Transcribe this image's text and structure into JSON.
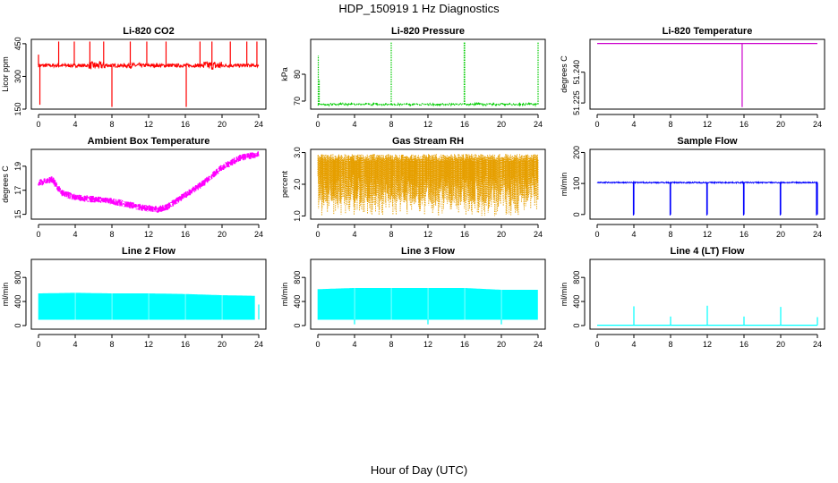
{
  "header": {
    "title": "HDP_150919  1 Hz Diagnostics"
  },
  "footer": {
    "xlabel": "Hour of Day (UTC)"
  },
  "chart_data": [
    {
      "type": "line",
      "title": "Li-820 CO2",
      "ylabel": "Licor ppm",
      "xlim": [
        0,
        24
      ],
      "ylim": [
        150,
        470
      ],
      "xticks": [
        0,
        4,
        8,
        12,
        16,
        20,
        24
      ],
      "yticks": [
        150,
        300,
        450
      ],
      "ytick_labels": [
        "150",
        "300",
        "450"
      ],
      "color": "#ff0000",
      "style": "noisy",
      "base": [
        [
          0,
          350
        ],
        [
          24,
          350
        ]
      ],
      "noise": 8,
      "spikes": [
        [
          0,
          400
        ],
        [
          0.15,
          170
        ],
        [
          2.2,
          460
        ],
        [
          3.9,
          460
        ],
        [
          5.6,
          460
        ],
        [
          7.1,
          460
        ],
        [
          8,
          160
        ],
        [
          10,
          460
        ],
        [
          11.8,
          460
        ],
        [
          13.9,
          460
        ],
        [
          16.1,
          160
        ],
        [
          17.6,
          460
        ],
        [
          18.9,
          460
        ],
        [
          20.9,
          460
        ],
        [
          22.7,
          460
        ],
        [
          23.8,
          460
        ]
      ],
      "extra_noise": [
        [
          5.5,
          7.5,
          18
        ],
        [
          9.5,
          11,
          12
        ],
        [
          18,
          20,
          20
        ]
      ]
    },
    {
      "type": "line",
      "title": "Li-820 Pressure",
      "ylabel": "kPa",
      "xlim": [
        0,
        24
      ],
      "ylim": [
        67,
        93
      ],
      "xticks": [
        0,
        4,
        8,
        12,
        16,
        20,
        24
      ],
      "yticks": [
        70,
        80
      ],
      "ytick_labels": [
        "70",
        "80"
      ],
      "color": "#00cc00",
      "style": "dotted",
      "base": [
        [
          0,
          68.8
        ],
        [
          24,
          68.8
        ]
      ],
      "noise": 0.3,
      "spikes": [
        [
          0.05,
          87
        ],
        [
          0.15,
          78
        ],
        [
          8,
          92
        ],
        [
          16,
          92
        ],
        [
          15.95,
          92
        ],
        [
          24,
          92
        ]
      ],
      "extra_noise": []
    },
    {
      "type": "line",
      "title": "Li-820 Temperature",
      "ylabel": "degrees C",
      "xlim": [
        0,
        24
      ],
      "ylim": [
        51.222,
        51.256
      ],
      "xticks": [
        0,
        4,
        8,
        12,
        16,
        20,
        24
      ],
      "yticks": [
        51.225,
        51.24
      ],
      "ytick_labels": [
        "51.225",
        "51.240"
      ],
      "color": "#cc00cc",
      "style": "line",
      "base": [
        [
          0,
          51.254
        ],
        [
          24,
          51.254
        ]
      ],
      "noise": 0,
      "spikes": [
        [
          15.8,
          51.223
        ]
      ],
      "extra_noise": []
    },
    {
      "type": "line",
      "title": "Ambient Box Temperature",
      "ylabel": "degrees C",
      "xlim": [
        0,
        24
      ],
      "ylim": [
        14.6,
        20.4
      ],
      "xticks": [
        0,
        4,
        8,
        12,
        16,
        20,
        24
      ],
      "yticks": [
        15,
        17,
        19
      ],
      "ytick_labels": [
        "15",
        "17",
        "19"
      ],
      "color": "#ff00ff",
      "style": "band",
      "base": [
        [
          0,
          17.6
        ],
        [
          1.5,
          17.9
        ],
        [
          2.5,
          16.8
        ],
        [
          4,
          16.4
        ],
        [
          8,
          16.1
        ],
        [
          11,
          15.6
        ],
        [
          13,
          15.4
        ],
        [
          14,
          15.6
        ],
        [
          16,
          16.6
        ],
        [
          18,
          17.6
        ],
        [
          20,
          18.9
        ],
        [
          22,
          19.7
        ],
        [
          24,
          20
        ]
      ],
      "noise": 0.28,
      "spikes": [],
      "extra_noise": []
    },
    {
      "type": "line",
      "title": "Gas Stream RH",
      "ylabel": "percent",
      "xlim": [
        0,
        24
      ],
      "ylim": [
        0.9,
        3.1
      ],
      "xticks": [
        0,
        4,
        8,
        12,
        16,
        20,
        24
      ],
      "yticks": [
        1.0,
        2.0,
        3.0
      ],
      "ytick_labels": [
        "1.0",
        "2.0",
        "3.0"
      ],
      "color": "#e69f00",
      "style": "rh",
      "base": [
        [
          0,
          2.6
        ],
        [
          24,
          2.6
        ]
      ],
      "noise": 0.2,
      "spikes": [],
      "extra_noise": []
    },
    {
      "type": "line",
      "title": "Sample Flow",
      "ylabel": "ml/min",
      "xlim": [
        0,
        24
      ],
      "ylim": [
        -15,
        210
      ],
      "xticks": [
        0,
        4,
        8,
        12,
        16,
        20,
        24
      ],
      "yticks": [
        0,
        100,
        200
      ],
      "ytick_labels": [
        "0",
        "100",
        "200"
      ],
      "color": "#0000ff",
      "style": "noisy",
      "base": [
        [
          0,
          103
        ],
        [
          24,
          103
        ]
      ],
      "noise": 2,
      "spikes": [
        [
          3.95,
          -3
        ],
        [
          4,
          0
        ],
        [
          7.95,
          -3
        ],
        [
          8,
          0
        ],
        [
          11.95,
          -3
        ],
        [
          12,
          0
        ],
        [
          15.95,
          -3
        ],
        [
          16,
          0
        ],
        [
          19.95,
          -3
        ],
        [
          20,
          0
        ],
        [
          23.9,
          -3
        ],
        [
          24,
          0
        ]
      ],
      "extra_noise": []
    },
    {
      "type": "area",
      "title": "Line 2 Flow",
      "ylabel": "ml/min",
      "xlim": [
        0,
        24
      ],
      "ylim": [
        -60,
        1100
      ],
      "xticks": [
        0,
        4,
        8,
        12,
        16,
        20,
        24
      ],
      "yticks": [
        0,
        400,
        800
      ],
      "ytick_labels": [
        "0",
        "400",
        "800"
      ],
      "color": "#00ffff",
      "style": "fill",
      "low": 100,
      "high": [
        [
          0,
          530
        ],
        [
          4,
          540
        ],
        [
          8,
          530
        ],
        [
          12,
          530
        ],
        [
          16,
          520
        ],
        [
          20,
          500
        ],
        [
          23.6,
          490
        ]
      ],
      "gaps": [
        4,
        8,
        12,
        16,
        20
      ],
      "spikes": [
        [
          24,
          350
        ]
      ]
    },
    {
      "type": "area",
      "title": "Line 3 Flow",
      "ylabel": "ml/min",
      "xlim": [
        0,
        24
      ],
      "ylim": [
        -60,
        1100
      ],
      "xticks": [
        0,
        4,
        8,
        12,
        16,
        20,
        24
      ],
      "yticks": [
        0,
        400,
        800
      ],
      "ytick_labels": [
        "0",
        "400",
        "800"
      ],
      "color": "#00ffff",
      "style": "fill",
      "low": 100,
      "high": [
        [
          0,
          600
        ],
        [
          4,
          620
        ],
        [
          8,
          620
        ],
        [
          12,
          620
        ],
        [
          16,
          620
        ],
        [
          20,
          590
        ],
        [
          24,
          590
        ]
      ],
      "gaps": [
        4,
        8,
        12,
        16,
        20
      ],
      "spikes": [
        [
          4,
          20
        ],
        [
          12,
          20
        ],
        [
          20,
          20
        ]
      ]
    },
    {
      "type": "line",
      "title": "Line 4 (LT) Flow",
      "ylabel": "ml/min",
      "xlim": [
        0,
        24
      ],
      "ylim": [
        -60,
        1100
      ],
      "xticks": [
        0,
        4,
        8,
        12,
        16,
        20,
        24
      ],
      "yticks": [
        0,
        400,
        800
      ],
      "ytick_labels": [
        "0",
        "400",
        "800"
      ],
      "color": "#00ffff",
      "style": "line",
      "base": [
        [
          0,
          5
        ],
        [
          24,
          5
        ]
      ],
      "noise": 0,
      "spikes": [
        [
          4,
          320
        ],
        [
          8,
          150
        ],
        [
          12,
          330
        ],
        [
          16,
          150
        ],
        [
          20,
          310
        ],
        [
          24,
          140
        ]
      ],
      "extra_noise": []
    }
  ]
}
